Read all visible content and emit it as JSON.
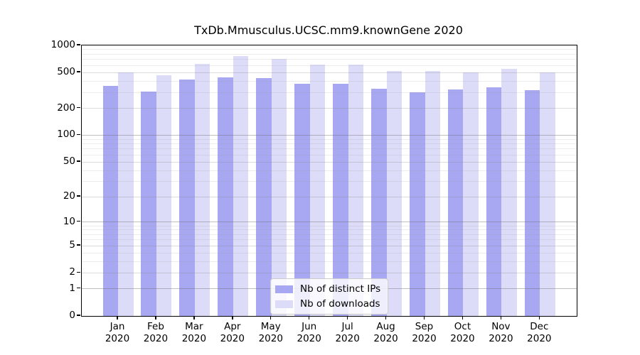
{
  "title": "TxDb.Mmusculus.UCSC.mm9.knownGene 2020",
  "chart_data": {
    "type": "bar",
    "title": "TxDb.Mmusculus.UCSC.mm9.knownGene 2020",
    "categories": [
      "Jan 2020",
      "Feb 2020",
      "Mar 2020",
      "Apr 2020",
      "May 2020",
      "Jun 2020",
      "Jul 2020",
      "Aug 2020",
      "Sep 2020",
      "Oct 2020",
      "Nov 2020",
      "Dec 2020"
    ],
    "series": [
      {
        "name": "Nb of distinct IPs",
        "color": "#a8a8f2",
        "values": [
          357,
          305,
          418,
          440,
          437,
          374,
          372,
          328,
          304,
          324,
          344,
          321
        ]
      },
      {
        "name": "Nb of downloads",
        "color": "#dcdcf8",
        "values": [
          500,
          470,
          628,
          766,
          702,
          612,
          608,
          524,
          522,
          500,
          554,
          498
        ]
      }
    ],
    "xlabel": "",
    "ylabel": "",
    "yscale": "log10(1+x)",
    "ylim": [
      0,
      1000
    ],
    "y_tick_values": [
      1000,
      500,
      200,
      100,
      50,
      20,
      10,
      5,
      2,
      1,
      0
    ],
    "y_tick_labels": [
      "1000",
      "500",
      "200",
      "100",
      "50",
      "20",
      "10",
      "5",
      "2",
      "1",
      "0"
    ],
    "grid": true,
    "legend_position": "lower center inside"
  },
  "axes": {
    "y_major_gridlines": [
      1,
      10,
      100
    ],
    "y_labeled_gridlines": [
      2,
      5,
      20,
      50,
      200,
      500
    ],
    "y_minor_gridlines": [
      3,
      4,
      6,
      7,
      8,
      9,
      30,
      40,
      60,
      70,
      80,
      90,
      300,
      400,
      600,
      700,
      800,
      900
    ]
  },
  "legend": {
    "items": [
      {
        "label": "Nb of distinct IPs"
      },
      {
        "label": "Nb of downloads"
      }
    ]
  },
  "colors": {
    "distinct_ips": "#a8a8f2",
    "downloads": "#dcdcf8",
    "axis": "#000000",
    "background": "#ffffff",
    "legend_border": "#cccccc"
  }
}
